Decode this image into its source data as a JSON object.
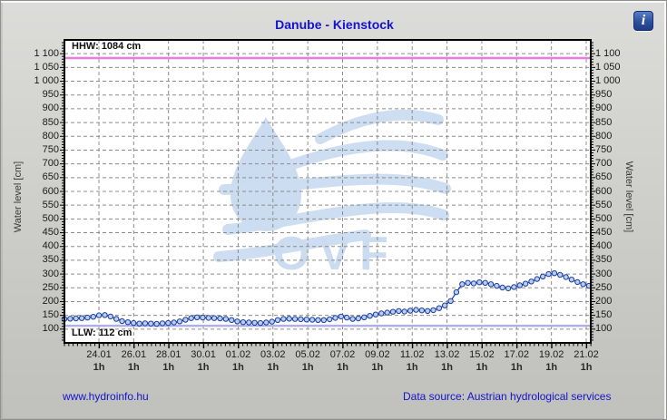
{
  "window": {
    "info_icon_glyph": "i"
  },
  "header": {
    "title": "Danube - Kienstock"
  },
  "watermark": {
    "text": "OVF",
    "color": "#cbdcf1"
  },
  "footer": {
    "site_link": "www.hydroinfo.hu",
    "data_source": "Data source: Austrian hydrological services"
  },
  "colors": {
    "title": "#1414cc",
    "series_line": "#2740c8",
    "marker_fill": "#b5d1f0",
    "marker_stroke": "#203a9c",
    "hhw_line": "#ee7ae1",
    "llw_line": "#b0b0e8",
    "grid": "#8c8c8c",
    "axis": "#000000",
    "plot_bg": "#ffffff"
  },
  "chart_data": {
    "type": "line",
    "title": "Danube - Kienstock",
    "ylabel_left": "Water level [cm]",
    "ylabel_right": "Water level [cm]",
    "ylim": [
      50,
      1150
    ],
    "ytick_values": [
      1100,
      1050,
      1000,
      950,
      900,
      850,
      800,
      750,
      700,
      650,
      600,
      550,
      500,
      450,
      400,
      350,
      300,
      250,
      200,
      150,
      100
    ],
    "ytick_labels": [
      "1 100",
      "1 050",
      "1 000",
      "950",
      "900",
      "850",
      "800",
      "750",
      "700",
      "650",
      "600",
      "550",
      "500",
      "450",
      "400",
      "350",
      "300",
      "250",
      "200",
      "150",
      "100"
    ],
    "x_tick_dates": [
      "24.01",
      "26.01",
      "28.01",
      "30.01",
      "01.02",
      "03.02",
      "05.02",
      "07.02",
      "09.02",
      "11.02",
      "13.02",
      "15.02",
      "17.02",
      "19.02",
      "21.02"
    ],
    "x_sub_label": "1h",
    "grid": true,
    "legend": "none",
    "reference_lines": [
      {
        "name": "HHW",
        "label": "HHW: 1084 cm",
        "value": 1084,
        "color": "#ee7ae1"
      },
      {
        "name": "LLW",
        "label": "LLW: 112 cm",
        "value": 112,
        "color": "#b0b0e8"
      }
    ],
    "series": [
      {
        "name": "water-level",
        "start_date": "22.01",
        "sample_interval": "8h",
        "unit": "cm",
        "values": [
          137,
          138,
          139,
          140,
          142,
          145,
          150,
          151,
          146,
          137,
          129,
          125,
          122,
          120,
          121,
          120,
          119,
          121,
          122,
          124,
          128,
          134,
          140,
          143,
          142,
          141,
          140,
          139,
          137,
          133,
          128,
          125,
          124,
          123,
          122,
          124,
          127,
          133,
          137,
          138,
          137,
          136,
          135,
          134,
          133,
          133,
          136,
          141,
          146,
          142,
          137,
          139,
          143,
          148,
          153,
          157,
          160,
          163,
          166,
          164,
          167,
          170,
          168,
          166,
          169,
          176,
          186,
          202,
          234,
          263,
          268,
          266,
          270,
          268,
          263,
          257,
          251,
          248,
          253,
          259,
          265,
          273,
          282,
          291,
          300,
          303,
          297,
          289,
          280,
          271,
          263,
          257
        ]
      }
    ]
  }
}
